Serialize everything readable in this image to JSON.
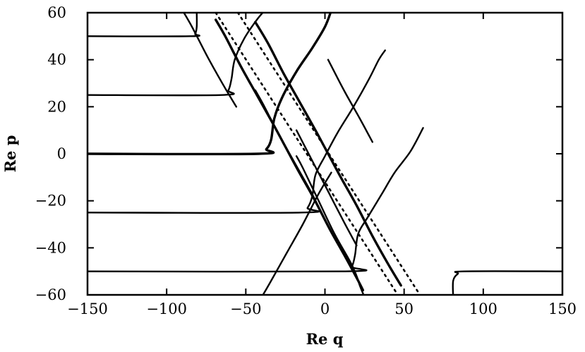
{
  "chart_data": {
    "type": "line",
    "xlabel": "Re q",
    "ylabel": "Re p",
    "xlim": [
      -150,
      150
    ],
    "ylim": [
      -60,
      60
    ],
    "xticks": [
      "−150",
      "−100",
      "−50",
      "0",
      "50",
      "100",
      "150"
    ],
    "yticks": [
      "60",
      "40",
      "20",
      "0",
      "−20",
      "−40",
      "−60"
    ],
    "grid": false,
    "series": [
      {
        "style": "solid",
        "points": [
          [
            -150,
            50
          ],
          [
            -85,
            50
          ],
          [
            -82,
            51
          ],
          [
            -81,
            54
          ],
          [
            -81,
            60
          ]
        ]
      },
      {
        "style": "solid",
        "points": [
          [
            -150,
            25
          ],
          [
            -65,
            25
          ],
          [
            -61,
            27
          ],
          [
            -59,
            32
          ],
          [
            -57,
            40
          ],
          [
            -51,
            49
          ],
          [
            -43,
            57
          ],
          [
            -38,
            61
          ]
        ]
      },
      {
        "style": "thick",
        "points": [
          [
            -150,
            0
          ],
          [
            -42,
            0
          ],
          [
            -37,
            2
          ],
          [
            -34,
            6
          ],
          [
            -32,
            15
          ],
          [
            -27,
            24
          ],
          [
            -18,
            35
          ],
          [
            -8,
            45
          ],
          [
            0,
            54
          ],
          [
            4,
            61
          ]
        ]
      },
      {
        "style": "solid",
        "points": [
          [
            -150,
            -25
          ],
          [
            -15,
            -25
          ],
          [
            -11,
            -23
          ],
          [
            -8,
            -18
          ],
          [
            -6,
            -9
          ],
          [
            0,
            -1
          ],
          [
            8,
            9
          ],
          [
            18,
            20
          ],
          [
            28,
            32
          ],
          [
            34,
            40
          ],
          [
            38,
            44
          ]
        ]
      },
      {
        "style": "solid",
        "points": [
          [
            -150,
            -50
          ],
          [
            13,
            -50
          ],
          [
            17,
            -48
          ],
          [
            19,
            -43
          ],
          [
            21,
            -34
          ],
          [
            27,
            -27
          ],
          [
            36,
            -17
          ],
          [
            44,
            -8
          ],
          [
            54,
            1
          ],
          [
            62,
            11
          ]
        ]
      },
      {
        "style": "solid",
        "points": [
          [
            81,
            -61
          ],
          [
            81,
            -54
          ],
          [
            84,
            -51
          ],
          [
            88,
            -50
          ],
          [
            150,
            -50
          ]
        ]
      },
      {
        "style": "solid",
        "points": [
          [
            -18,
            -1
          ],
          [
            -14,
            -6
          ],
          [
            -4,
            -20
          ],
          [
            6,
            -34
          ],
          [
            16,
            -46
          ],
          [
            20,
            -52
          ],
          [
            22,
            -56
          ],
          [
            25,
            -61
          ]
        ]
      },
      {
        "style": "solid",
        "points": [
          [
            -44,
            27
          ],
          [
            -39,
            21
          ],
          [
            -29,
            8
          ],
          [
            -19,
            -4
          ],
          [
            -9,
            -16
          ],
          [
            -3,
            -24
          ]
        ]
      },
      {
        "style": "thick",
        "points": [
          [
            -69,
            57
          ],
          [
            -63,
            50
          ],
          [
            -53,
            37
          ],
          [
            -43,
            25
          ],
          [
            -33,
            13
          ],
          [
            -25,
            3
          ],
          [
            -17,
            -7
          ],
          [
            -7,
            -19
          ],
          [
            3,
            -32
          ],
          [
            13,
            -44
          ],
          [
            21,
            -54
          ],
          [
            24,
            -58
          ]
        ]
      },
      {
        "style": "solid",
        "points": [
          [
            -90,
            61
          ],
          [
            -84,
            54
          ],
          [
            -74,
            41
          ],
          [
            -64,
            29
          ],
          [
            -56,
            20
          ]
        ]
      },
      {
        "style": "solid",
        "points": [
          [
            -40,
            -61
          ],
          [
            -34,
            -54
          ],
          [
            -24,
            -42
          ],
          [
            -14,
            -30
          ],
          [
            -4,
            -17
          ],
          [
            4,
            -8
          ]
        ]
      },
      {
        "style": "solid",
        "points": [
          [
            -18,
            10
          ],
          [
            -8,
            -3
          ],
          [
            2,
            -16
          ],
          [
            12,
            -29
          ],
          [
            20,
            -39
          ]
        ]
      },
      {
        "style": "thick",
        "points": [
          [
            -44,
            56
          ],
          [
            -36,
            47
          ],
          [
            -26,
            34
          ],
          [
            -16,
            22
          ],
          [
            -6,
            10
          ],
          [
            2,
            0
          ],
          [
            10,
            -10
          ],
          [
            20,
            -22
          ],
          [
            30,
            -35
          ],
          [
            40,
            -47
          ],
          [
            48,
            -56
          ]
        ]
      },
      {
        "style": "solid",
        "points": [
          [
            2,
            40
          ],
          [
            12,
            27
          ],
          [
            22,
            15
          ],
          [
            30,
            5
          ]
        ]
      },
      {
        "style": "dotted",
        "points": [
          [
            -69,
            60
          ],
          [
            46,
            -60
          ]
        ]
      },
      {
        "style": "dotted",
        "points": [
          [
            -55,
            60
          ],
          [
            60,
            -60
          ]
        ]
      }
    ]
  }
}
